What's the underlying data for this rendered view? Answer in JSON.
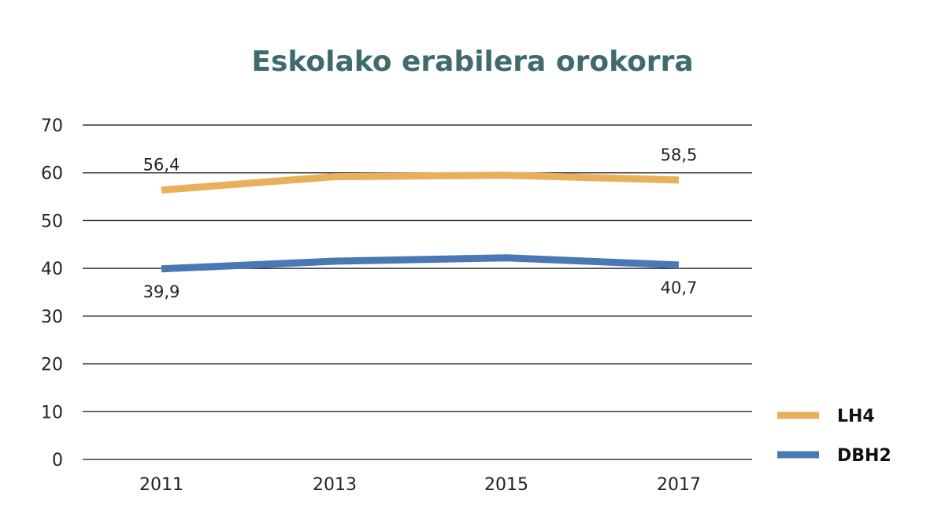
{
  "chart_data": {
    "type": "line",
    "title": "Eskolako erabilera orokorra",
    "xlabel": "",
    "ylabel": "",
    "categories": [
      "2011",
      "2013",
      "2015",
      "2017"
    ],
    "ylim": [
      0,
      70
    ],
    "yticks": [
      "0",
      "10",
      "20",
      "30",
      "40",
      "50",
      "60",
      "70"
    ],
    "grid": true,
    "legend_position": "bottom-right",
    "series": [
      {
        "name": "LH4",
        "color": "#e8b05a",
        "values": [
          56.4,
          59.2,
          59.5,
          58.5
        ],
        "labels": [
          "56,4",
          "",
          "",
          "58,5"
        ],
        "label_side": "above"
      },
      {
        "name": "DBH2",
        "color": "#4a78b4",
        "values": [
          39.9,
          41.5,
          42.2,
          40.7
        ],
        "labels": [
          "39,9",
          "",
          "",
          "40,7"
        ],
        "label_side": "below"
      }
    ]
  }
}
